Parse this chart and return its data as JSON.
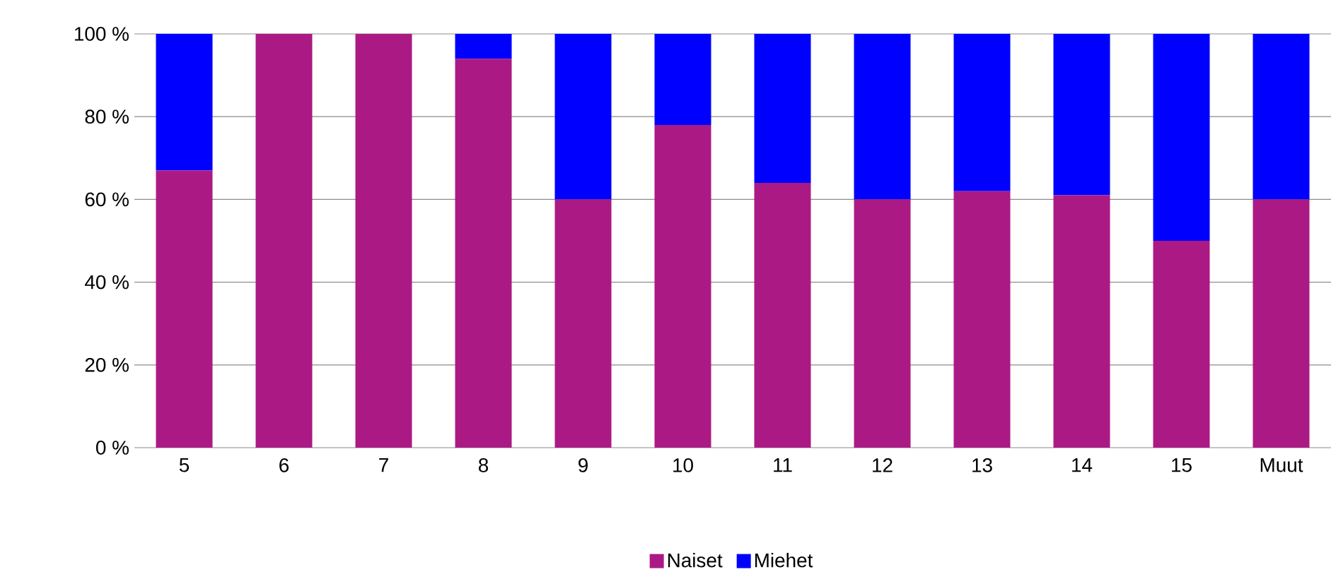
{
  "chart_data": {
    "type": "bar",
    "stacked": true,
    "categories": [
      "5",
      "6",
      "7",
      "8",
      "9",
      "10",
      "11",
      "12",
      "13",
      "14",
      "15",
      "Muut"
    ],
    "series": [
      {
        "name": "Naiset",
        "color": "#ab1a84",
        "values": [
          67,
          100,
          100,
          94,
          60,
          78,
          64,
          60,
          62,
          61,
          50,
          60
        ]
      },
      {
        "name": "Miehet",
        "color": "#0000ff",
        "values": [
          33,
          0,
          0,
          6,
          40,
          22,
          36,
          40,
          38,
          39,
          50,
          40
        ]
      }
    ],
    "ylim": [
      0,
      100
    ],
    "yticks": [
      {
        "value": 0,
        "label": "0 %"
      },
      {
        "value": 20,
        "label": "20 %"
      },
      {
        "value": 40,
        "label": "40 %"
      },
      {
        "value": 60,
        "label": "60 %"
      },
      {
        "value": 80,
        "label": "80 %"
      },
      {
        "value": 100,
        "label": "100 %"
      }
    ],
    "grid": "y",
    "legend": "bottom"
  }
}
